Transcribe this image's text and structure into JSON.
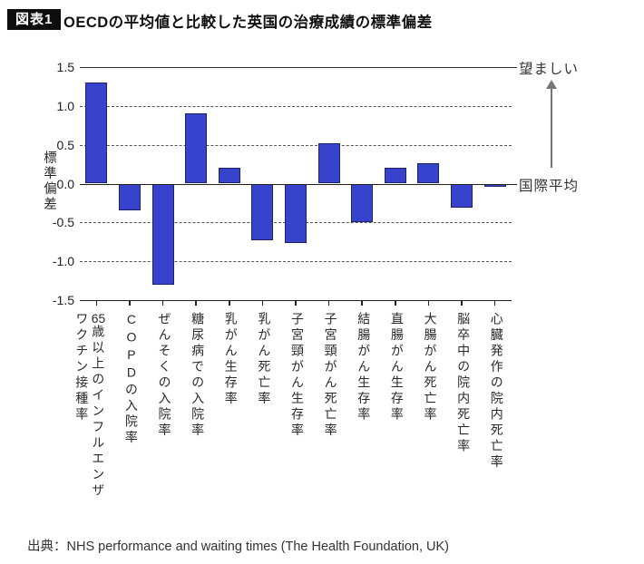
{
  "header": {
    "badge": "図表1",
    "title": "OECDの平均値と比較した英国の治療成績の標準偏差"
  },
  "chart_data": {
    "type": "bar",
    "title": "OECDの平均値と比較した英国の治療成績の標準偏差",
    "ylabel": "標準偏差",
    "xlabel": "",
    "ylim": [
      -1.5,
      1.5
    ],
    "yticks": [
      "1.5",
      "1.0",
      "0.5",
      "0.0",
      "-0.5",
      "-1.0",
      "-1.5"
    ],
    "dashed_gridlines": [
      1.0,
      0.5,
      -0.5,
      -1.0
    ],
    "solid_lines": [
      1.5,
      0.0,
      -1.5
    ],
    "categories": [
      "65歳以上のインフルエンザ\nワクチン接種率",
      "COPDの入院率",
      "ぜんそくの入院率",
      "糖尿病での入院率",
      "乳がん生存率",
      "乳がん死亡率",
      "子宮頸がん生存率",
      "子宮頸がん死亡率",
      "結腸がん生存率",
      "直腸がん生存率",
      "大腸がん死亡率",
      "脳卒中の院内死亡率",
      "心臓発作の院内死亡率"
    ],
    "values": [
      1.3,
      -0.35,
      -1.3,
      0.9,
      0.2,
      -0.73,
      -0.77,
      0.52,
      -0.5,
      0.21,
      0.26,
      -0.31,
      -0.03
    ],
    "bar_color": "#3843cd",
    "bar_border_color": "#1f2366",
    "grid": "horizontal dashed",
    "legend": "none",
    "annotations": {
      "desirable": "望ましい",
      "international_average": "国際平均"
    }
  },
  "footer": {
    "source": "出典：NHS performance and waiting times (The Health Foundation, UK)"
  }
}
